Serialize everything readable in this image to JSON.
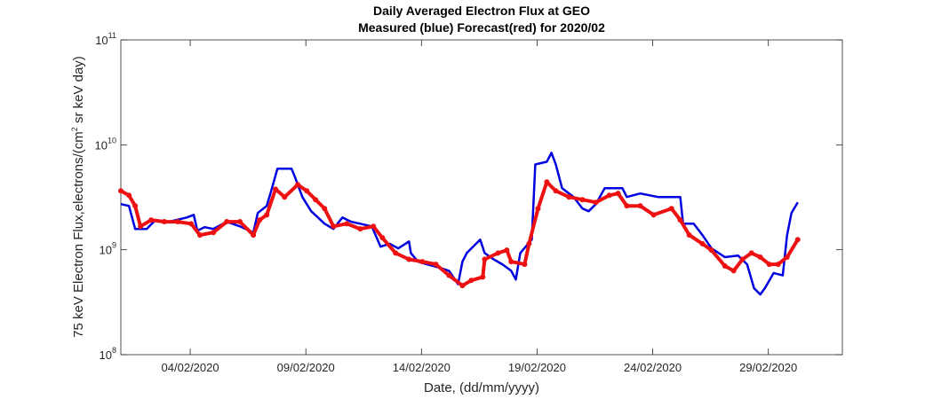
{
  "chart_data": {
    "type": "line",
    "title": [
      "Daily Averaged Electron Flux at GEO",
      "Measured (blue) Forecast(red) for 2020/02"
    ],
    "xlabel": "Date, (dd/mm/yyyy)",
    "ylabel": [
      "75 keV Electron Flux,electrons/(cm",
      "2",
      " sr keV day)"
    ],
    "xlim": [
      1,
      32.2
    ],
    "xticks": [
      {
        "value": 4,
        "label": "04/02/2020"
      },
      {
        "value": 9,
        "label": "09/02/2020"
      },
      {
        "value": 14,
        "label": "14/02/2020"
      },
      {
        "value": 19,
        "label": "19/02/2020"
      },
      {
        "value": 24,
        "label": "24/02/2020"
      },
      {
        "value": 29,
        "label": "29/02/2020"
      }
    ],
    "ylim": [
      100000000,
      100000000000
    ],
    "yscale": "log",
    "yticks": [
      {
        "value": 100000000,
        "label": "10",
        "exponent": "8"
      },
      {
        "value": 1000000000,
        "label": "10",
        "exponent": "9"
      },
      {
        "value": 10000000000,
        "label": "10",
        "exponent": "10"
      },
      {
        "value": 100000000000,
        "label": "10",
        "exponent": "11"
      }
    ],
    "series": [
      {
        "color": "#0000e0",
        "mode": "line",
        "x": [
          1,
          1.35,
          1.62,
          2.12,
          2.5,
          3.08,
          3.85,
          4.15,
          4.31,
          4.62,
          5,
          5.58,
          6.15,
          6.73,
          6.92,
          7.31,
          7.5,
          7.77,
          8.38,
          8.54,
          8.85,
          9.23,
          9.81,
          10.19,
          10.58,
          10.96,
          11.35,
          11.85,
          12.23,
          12.62,
          13,
          13.46,
          13.54,
          13.85,
          14.23,
          14.81,
          15.19,
          15.58,
          15.77,
          15.96,
          16.54,
          16.73,
          17.12,
          17.5,
          17.88,
          18.08,
          18.27,
          18.77,
          18.92,
          19.42,
          19.62,
          19.81,
          20.08,
          20.58,
          20.96,
          21.23,
          21.54,
          21.92,
          22.69,
          22.88,
          23.46,
          24.23,
          25.19,
          25.31,
          25.77,
          26.15,
          26.54,
          27.12,
          27.69,
          28.08,
          28.38,
          28.65,
          28.85,
          29.23,
          29.62,
          29.81,
          30,
          30.27
        ],
        "values": [
          2720000000.0,
          2620000000.0,
          1580000000.0,
          1580000000.0,
          1920000000.0,
          1850000000.0,
          2030000000.0,
          2150000000.0,
          1520000000.0,
          1640000000.0,
          1580000000.0,
          1850000000.0,
          1670000000.0,
          1460000000.0,
          2240000000.0,
          2620000000.0,
          3640000000.0,
          5920000000.0,
          5920000000.0,
          4870000000.0,
          3180000000.0,
          2330000000.0,
          1770000000.0,
          1580000000.0,
          2030000000.0,
          1850000000.0,
          1770000000.0,
          1670000000.0,
          1070000000.0,
          1140000000.0,
          1030000000.0,
          1200000000.0,
          930000000.0,
          770000000.0,
          726000000.0,
          670000000.0,
          630000000.0,
          470000000.0,
          770000000.0,
          930000000.0,
          1250000000.0,
          930000000.0,
          810000000.0,
          726000000.0,
          630000000.0,
          520000000.0,
          930000000.0,
          1250000000.0,
          6500000000.0,
          6900000000.0,
          8400000000.0,
          6500000000.0,
          3860000000.0,
          3180000000.0,
          2470000000.0,
          2330000000.0,
          2720000000.0,
          3860000000.0,
          3860000000.0,
          3180000000.0,
          3440000000.0,
          3180000000.0,
          3180000000.0,
          1770000000.0,
          1770000000.0,
          1380000000.0,
          1030000000.0,
          850000000.0,
          880000000.0,
          726000000.0,
          430000000.0,
          375000000.0,
          430000000.0,
          600000000.0,
          570000000.0,
          1380000000.0,
          2240000000.0,
          2830000000.0
        ]
      },
      {
        "color": "#ee1111",
        "mode": "markers",
        "x": [
          1,
          1.35,
          1.62,
          1.85,
          2.31,
          2.88,
          3.46,
          4.04,
          4.42,
          5,
          5.58,
          6.15,
          6.73,
          7,
          7.31,
          7.69,
          8.08,
          8.65,
          9.04,
          9.42,
          9.81,
          10.19,
          10.77,
          11.35,
          11.92,
          12.31,
          12.88,
          13.46,
          14.04,
          14.62,
          15.19,
          15.77,
          16.15,
          16.65,
          16.73,
          17.31,
          17.69,
          17.88,
          18.46,
          18.65,
          19.04,
          19.42,
          19.81,
          20.38,
          20.96,
          21.54,
          22.12,
          22.5,
          22.88,
          23.46,
          24.04,
          24.81,
          25.19,
          25.58,
          26.15,
          26.54,
          27.12,
          27.5,
          27.88,
          28.27,
          28.65,
          29.04,
          29.42,
          29.81,
          30.27
        ],
        "values": [
          3640000000.0,
          3300000000.0,
          2620000000.0,
          1670000000.0,
          1920000000.0,
          1850000000.0,
          1850000000.0,
          1770000000.0,
          1380000000.0,
          1460000000.0,
          1850000000.0,
          1850000000.0,
          1380000000.0,
          1920000000.0,
          2150000000.0,
          3780000000.0,
          3180000000.0,
          4170000000.0,
          3640000000.0,
          3000000000.0,
          2470000000.0,
          1670000000.0,
          1770000000.0,
          1580000000.0,
          1670000000.0,
          1300000000.0,
          930000000.0,
          810000000.0,
          770000000.0,
          726000000.0,
          570000000.0,
          455000000.0,
          510000000.0,
          550000000.0,
          810000000.0,
          930000000.0,
          990000000.0,
          770000000.0,
          726000000.0,
          1140000000.0,
          2470000000.0,
          4420000000.0,
          3640000000.0,
          3180000000.0,
          3000000000.0,
          2830000000.0,
          3300000000.0,
          3440000000.0,
          2620000000.0,
          2620000000.0,
          2150000000.0,
          2470000000.0,
          1920000000.0,
          1380000000.0,
          1140000000.0,
          990000000.0,
          700000000.0,
          630000000.0,
          810000000.0,
          930000000.0,
          850000000.0,
          726000000.0,
          726000000.0,
          850000000.0,
          1250000000.0
        ]
      }
    ]
  }
}
